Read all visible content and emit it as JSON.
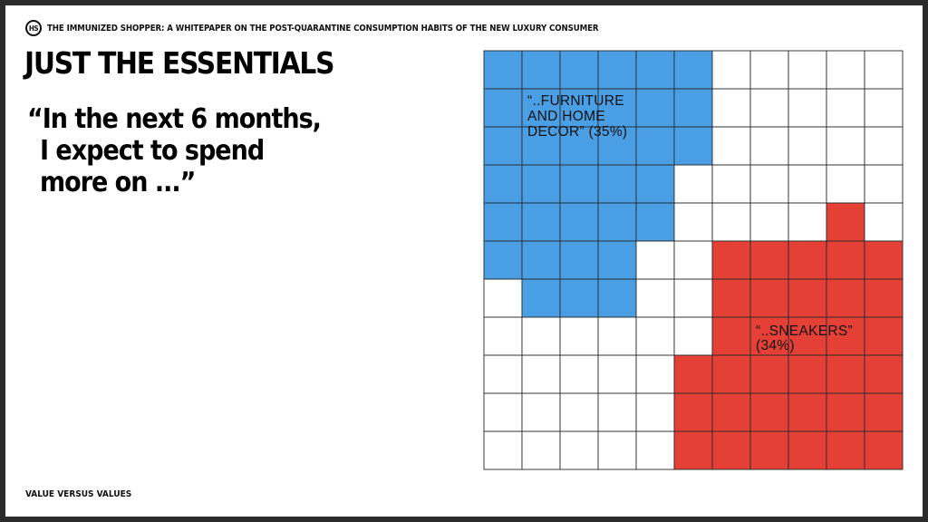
{
  "header": {
    "logo_text": "HS",
    "doc_title": "THE IMMUNIZED SHOPPER: A WHITEPAPER ON THE POST-QUARANTINE CONSUMPTION HABITS OF THE NEW LUXURY CONSUMER"
  },
  "headline": "JUST THE ESSENTIALS",
  "quote": {
    "line1": "“In the next 6 months,",
    "line2": "I expect to spend",
    "line3": "more on ...”"
  },
  "footer": "VALUE VERSUS VALUES",
  "colors": {
    "furniture": "#4a9ee3",
    "sneakers": "#e44035",
    "empty": "#ffffff",
    "grid": "#2a2a2a"
  },
  "chart_data": {
    "type": "waffle",
    "grid": {
      "columns": 11,
      "rows": 11
    },
    "series": [
      {
        "key": "furniture",
        "percent": 35,
        "label_lines": [
          "“..FURNITURE",
          "AND HOME",
          "DECOR” (35%)"
        ],
        "row_cells": [
          [
            0,
            5
          ],
          [
            0,
            5
          ],
          [
            0,
            5
          ],
          [
            0,
            4
          ],
          [
            0,
            4
          ],
          [
            0,
            3
          ],
          [
            1,
            3
          ]
        ]
      },
      {
        "key": "sneakers",
        "percent": 34,
        "label_lines": [
          "“..SNEAKERS”",
          "(34%)"
        ],
        "row_cells": [
          [],
          [],
          [],
          [],
          [
            9,
            9
          ],
          [
            6,
            10
          ],
          [
            6,
            10
          ],
          [
            6,
            10
          ],
          [
            5,
            10
          ],
          [
            5,
            10
          ],
          [
            5,
            10
          ]
        ]
      }
    ]
  }
}
